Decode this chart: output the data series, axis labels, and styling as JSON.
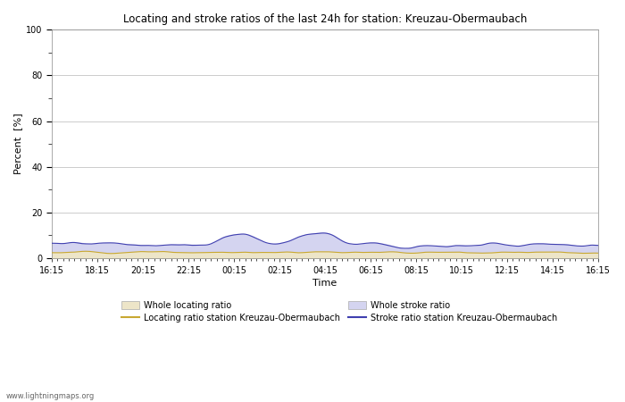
{
  "title": "Locating and stroke ratios of the last 24h for station: Kreuzau-Obermaubach",
  "xlabel": "Time",
  "ylabel": "Percent  [%]",
  "xlim": [
    0,
    96
  ],
  "ylim": [
    0,
    100
  ],
  "yticks_major": [
    0,
    20,
    40,
    60,
    80,
    100
  ],
  "yticks_minor": [
    10,
    30,
    50,
    70,
    90
  ],
  "xtick_labels": [
    "16:15",
    "18:15",
    "20:15",
    "22:15",
    "00:15",
    "02:15",
    "04:15",
    "06:15",
    "08:15",
    "10:15",
    "12:15",
    "14:15",
    "16:15"
  ],
  "xtick_positions": [
    0,
    8,
    16,
    24,
    32,
    40,
    48,
    56,
    64,
    72,
    80,
    88,
    96
  ],
  "background_color": "#ffffff",
  "plot_bg_color": "#ffffff",
  "grid_color": "#cccccc",
  "locating_fill_color": "#ede5c8",
  "stroke_fill_color": "#d4d4f0",
  "locating_line_color": "#c8a832",
  "stroke_line_color": "#4040b0",
  "watermark": "www.lightningmaps.org",
  "legend_row1": [
    "Whole locating ratio",
    "Locating ratio station Kreuzau-Obermaubach"
  ],
  "legend_row2": [
    "Whole stroke ratio",
    "Stroke ratio station Kreuzau-Obermaubach"
  ]
}
